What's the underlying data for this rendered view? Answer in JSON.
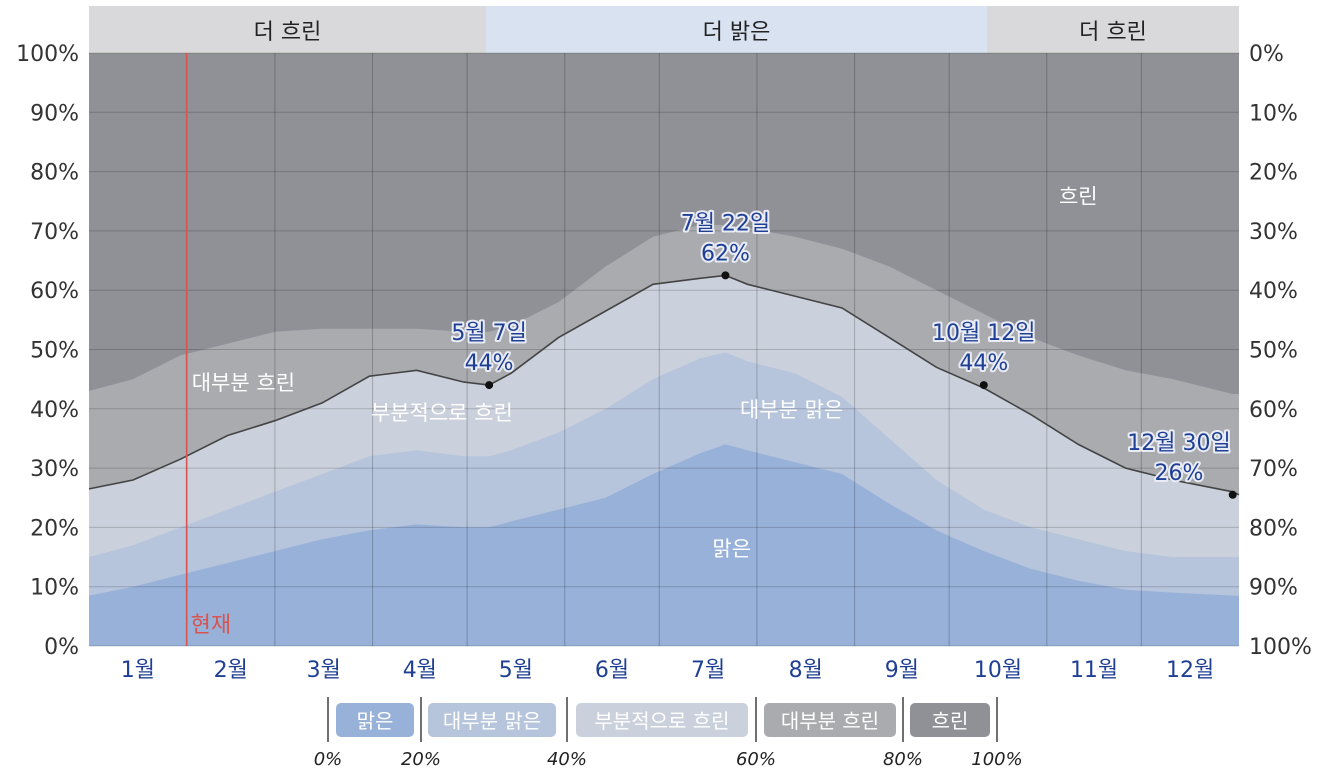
{
  "chart_data": {
    "type": "area",
    "left_axis_ticks": [
      "0%",
      "10%",
      "20%",
      "30%",
      "40%",
      "50%",
      "60%",
      "70%",
      "80%",
      "90%",
      "100%"
    ],
    "right_axis_ticks": [
      "100%",
      "90%",
      "80%",
      "70%",
      "60%",
      "50%",
      "40%",
      "30%",
      "20%",
      "10%",
      "0%"
    ],
    "ylim": [
      0,
      100
    ],
    "xlim": [
      1,
      366
    ],
    "grid": true,
    "months": [
      {
        "label": "1월",
        "start": 1
      },
      {
        "label": "2월",
        "start": 32
      },
      {
        "label": "3월",
        "start": 60
      },
      {
        "label": "4월",
        "start": 91
      },
      {
        "label": "5월",
        "start": 121
      },
      {
        "label": "6월",
        "start": 152
      },
      {
        "label": "7월",
        "start": 182
      },
      {
        "label": "8월",
        "start": 213
      },
      {
        "label": "9월",
        "start": 244
      },
      {
        "label": "10월",
        "start": 274
      },
      {
        "label": "11월",
        "start": 305
      },
      {
        "label": "12월",
        "start": 335
      }
    ],
    "top_bands": [
      {
        "label": "더 흐린",
        "start": 1,
        "end": 127,
        "color": "#d9d9db"
      },
      {
        "label": "더 밝은",
        "start": 127,
        "end": 286,
        "color": "#d8e2f1"
      },
      {
        "label": "더 흐린",
        "start": 286,
        "end": 366,
        "color": "#d9d9db"
      }
    ],
    "days": [
      1,
      15,
      30,
      45,
      60,
      75,
      90,
      105,
      120,
      128,
      135,
      150,
      165,
      180,
      195,
      203,
      210,
      225,
      240,
      255,
      270,
      285,
      300,
      315,
      330,
      345,
      364,
      366
    ],
    "series": [
      {
        "name": "맑은",
        "color": "#98b1d9",
        "values": [
          8.5,
          10,
          12,
          14,
          16,
          18,
          19.5,
          20.5,
          20,
          20,
          21,
          23,
          25,
          29,
          32.5,
          34,
          33,
          31,
          29,
          24,
          19.5,
          16,
          13,
          11,
          9.5,
          9,
          8.5,
          8.5
        ]
      },
      {
        "name": "대부분 맑은",
        "color": "#b6c4dc",
        "values": [
          15,
          17,
          20,
          23,
          26,
          29,
          32,
          33,
          32,
          32,
          33,
          36,
          40,
          45,
          48.5,
          49.5,
          48,
          46,
          42,
          35,
          28,
          23,
          20,
          18,
          16,
          15,
          15,
          15
        ]
      },
      {
        "name": "부분적으로 흐린",
        "color": "#cbd1dc",
        "values": [
          26.5,
          28,
          31.5,
          35.5,
          38,
          41,
          45.5,
          46.5,
          44.5,
          44,
          46,
          52,
          56.5,
          61,
          62,
          62.5,
          61,
          59,
          57,
          52,
          47,
          43.5,
          39,
          34,
          30,
          28,
          26,
          25.5
        ]
      },
      {
        "name": "대부분 흐린",
        "color": "#a9abaf",
        "values": [
          43,
          45,
          49,
          51,
          53,
          53.5,
          53.5,
          53.5,
          53,
          53,
          54,
          58,
          64,
          69,
          71,
          71,
          70.5,
          69,
          67,
          64,
          60,
          56,
          52,
          49,
          46.5,
          45,
          42.5,
          42.5
        ]
      },
      {
        "name": "흐린",
        "color": "#8f9196",
        "values": [
          100,
          100,
          100,
          100,
          100,
          100,
          100,
          100,
          100,
          100,
          100,
          100,
          100,
          100,
          100,
          100,
          100,
          100,
          100,
          100,
          100,
          100,
          100,
          100,
          100,
          100,
          100,
          100
        ]
      }
    ],
    "clear_or_mostly_clear_line": [
      26.5,
      28,
      31.5,
      35.5,
      38,
      41,
      45.5,
      46.5,
      44.5,
      44,
      46,
      52,
      56.5,
      61,
      62,
      62.5,
      61,
      59,
      57,
      52,
      47,
      43.5,
      39,
      34,
      30,
      28,
      26,
      25.5
    ],
    "area_labels": [
      {
        "text": "대부분 흐린",
        "day": 50,
        "y": 44.5
      },
      {
        "text": "부분적으로 흐린",
        "day": 113,
        "y": 39.5
      },
      {
        "text": "대부분 맑은",
        "day": 224,
        "y": 40
      },
      {
        "text": "맑은",
        "day": 205,
        "y": 16.5
      },
      {
        "text": "흐린",
        "day": 315,
        "y": 76
      }
    ],
    "annotations": [
      {
        "date": "5월 7일",
        "value": "44%",
        "day": 128,
        "y": 44
      },
      {
        "date": "7월 22일",
        "value": "62%",
        "day": 203,
        "y": 62.5
      },
      {
        "date": "10월 12일",
        "value": "44%",
        "day": 285,
        "y": 44
      },
      {
        "date": "12월 30일",
        "value": "26%",
        "day": 364,
        "y": 25.5
      }
    ],
    "now_marker": {
      "label": "현재",
      "day": 32
    },
    "legend": [
      {
        "label": "맑은",
        "color": "#98b1d9"
      },
      {
        "label": "대부분 맑은",
        "color": "#b6c4dc"
      },
      {
        "label": "부분적으로 흐린",
        "color": "#cbd1dc"
      },
      {
        "label": "대부분 흐린",
        "color": "#a9abaf"
      },
      {
        "label": "흐린",
        "color": "#8f9196"
      }
    ],
    "legend_scale": [
      "0%",
      "20%",
      "40%",
      "60%",
      "80%",
      "100%"
    ]
  }
}
